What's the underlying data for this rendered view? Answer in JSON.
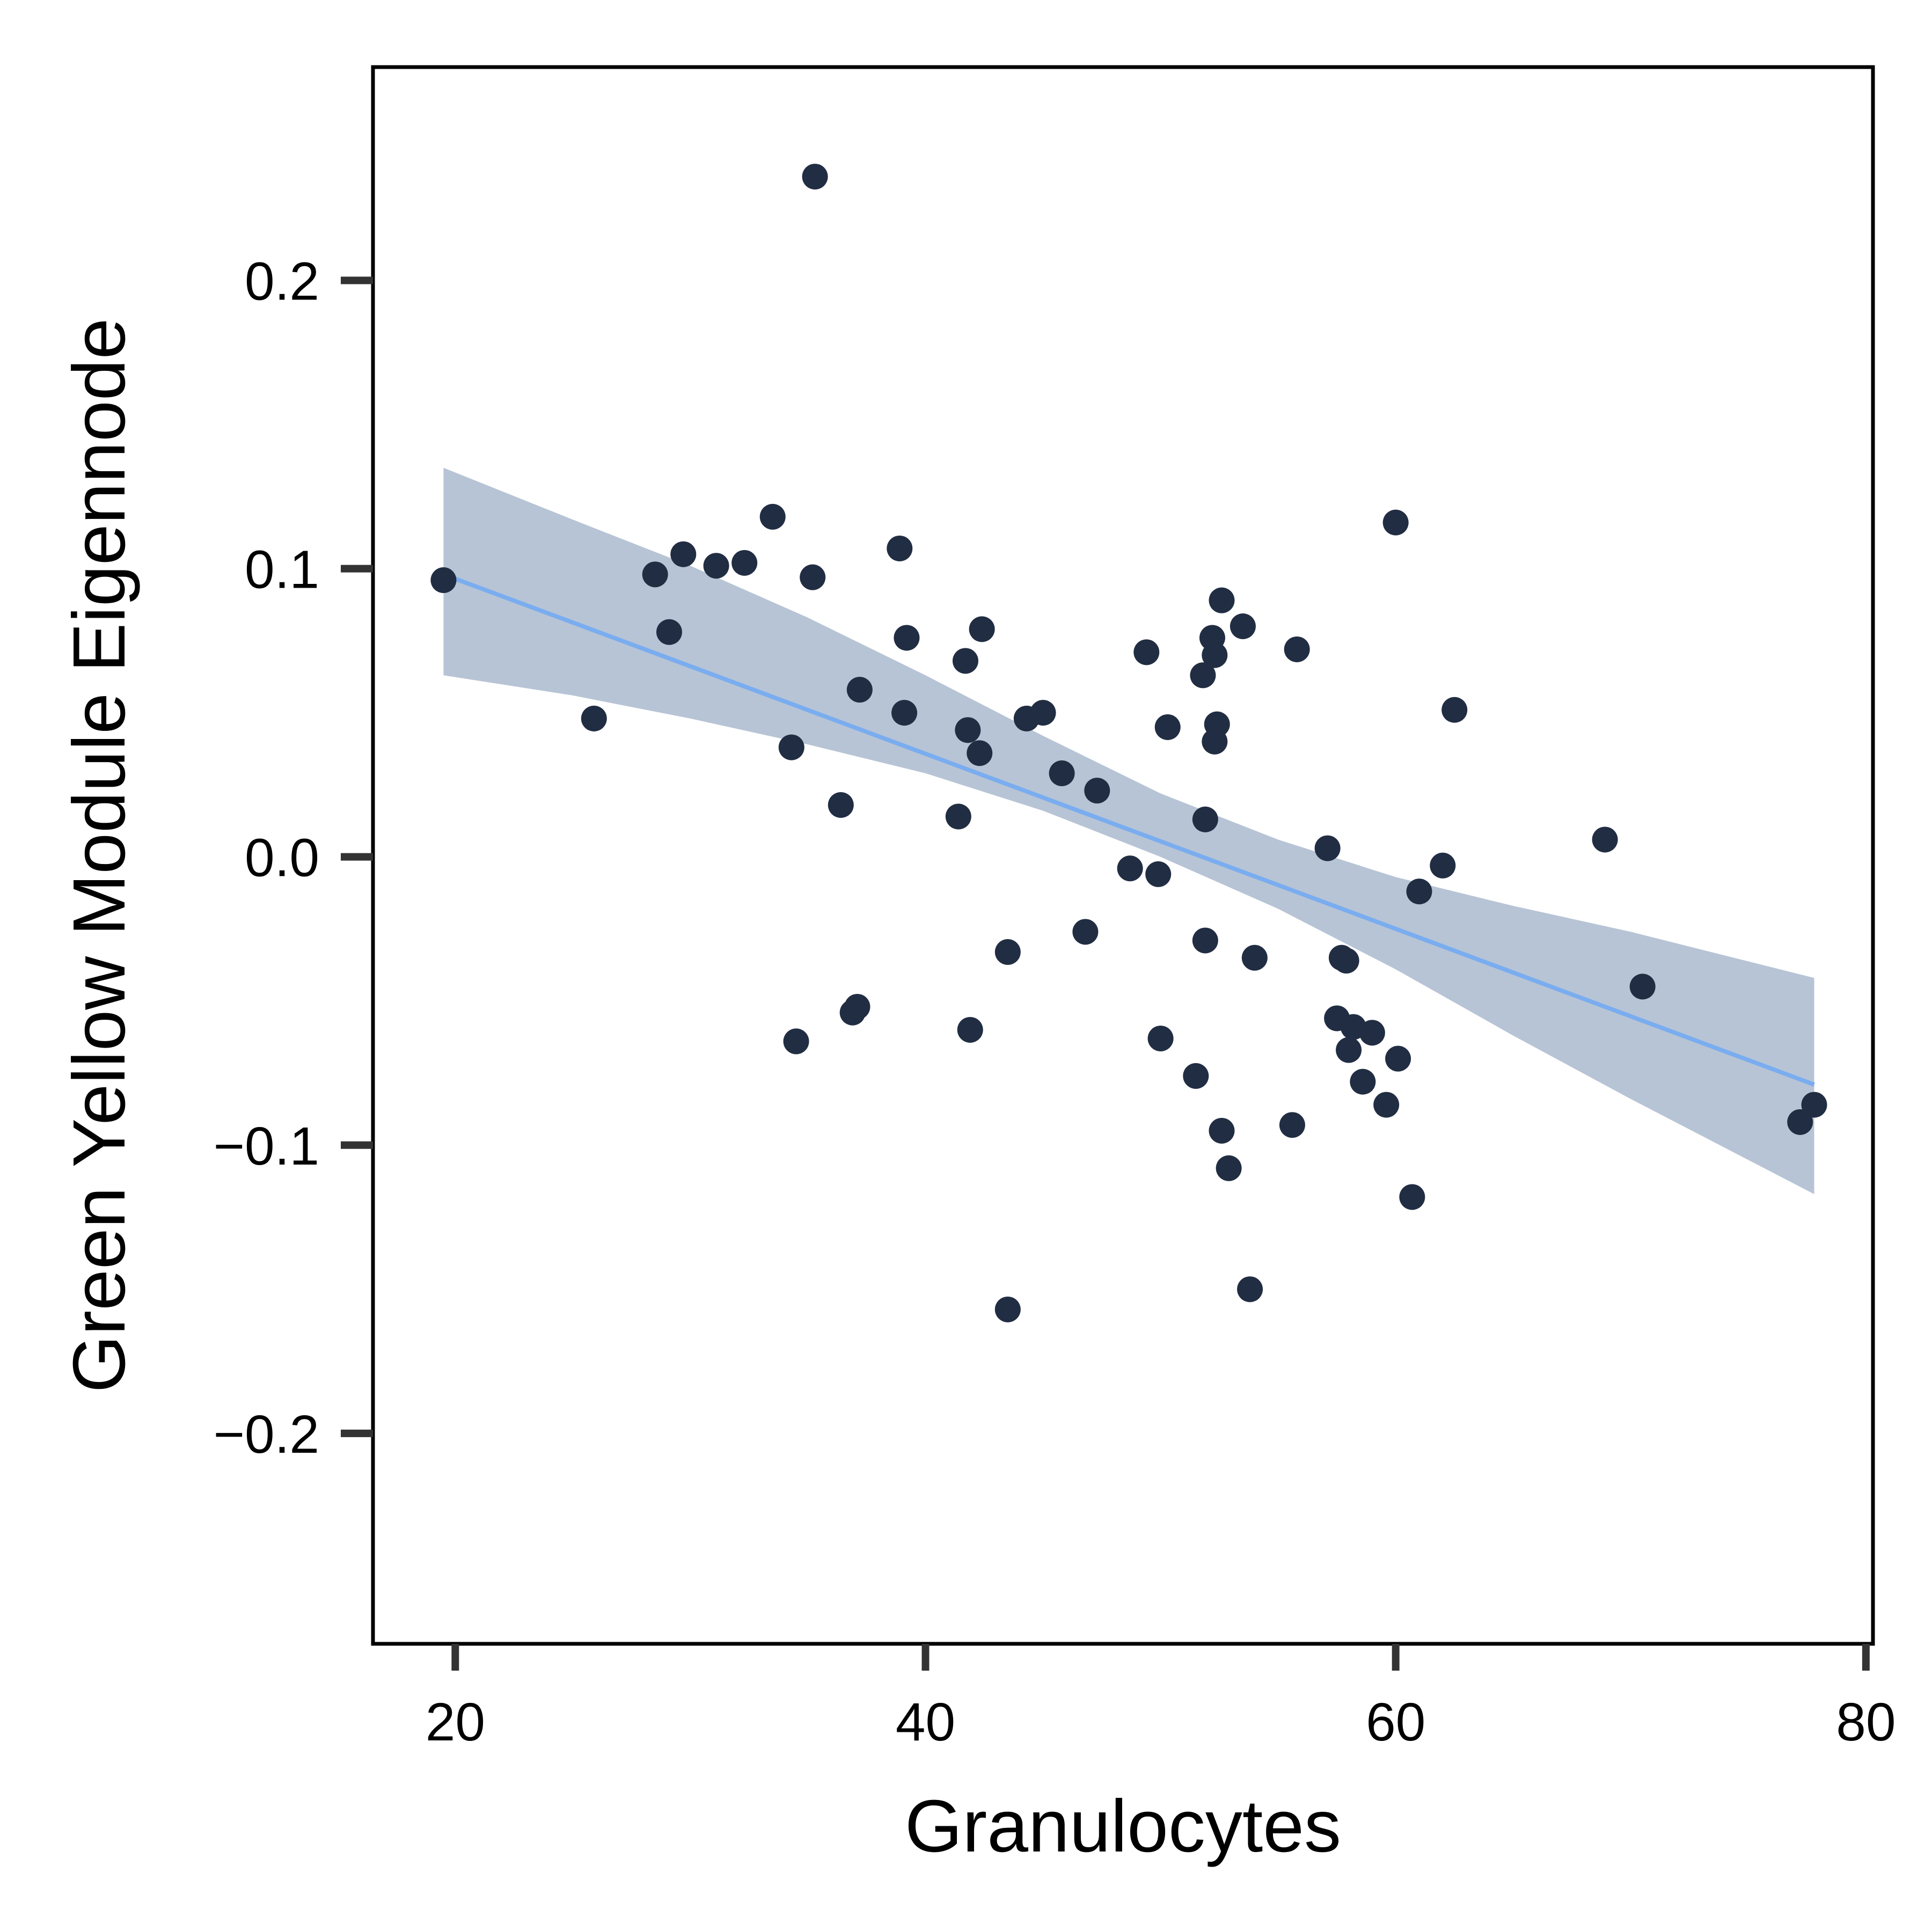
{
  "chart_data": {
    "type": "scatter",
    "title": "",
    "xlabel": "Granulocytes",
    "ylabel": "Green Yellow Module Eigennode",
    "xlim": [
      16.5,
      80.3
    ],
    "ylim": [
      -0.273,
      0.274
    ],
    "x_ticks": [
      20,
      40,
      60,
      80
    ],
    "y_ticks": [
      -0.2,
      -0.1,
      0.0,
      0.1,
      0.2
    ],
    "x_tick_labels": [
      "20",
      "40",
      "60",
      "80"
    ],
    "y_tick_labels": [
      "−0.2",
      "−0.1",
      "0.0",
      "0.1",
      "0.2"
    ],
    "grid": false,
    "colors": {
      "points": "#212d42",
      "fit_line": "#7aadf0",
      "confidence_band": "#b7c4d5",
      "frame": "#000000",
      "ticks": "#333333"
    },
    "points": [
      [
        19.5,
        0.096
      ],
      [
        25.9,
        0.048
      ],
      [
        28.5,
        0.098
      ],
      [
        29.1,
        0.078
      ],
      [
        29.7,
        0.105
      ],
      [
        31.1,
        0.101
      ],
      [
        32.3,
        0.102
      ],
      [
        33.5,
        0.118
      ],
      [
        34.3,
        0.038
      ],
      [
        34.5,
        -0.064
      ],
      [
        35.2,
        0.097
      ],
      [
        35.3,
        0.236
      ],
      [
        36.4,
        0.018
      ],
      [
        36.9,
        -0.054
      ],
      [
        37.1,
        -0.052
      ],
      [
        37.2,
        0.058
      ],
      [
        38.9,
        0.107
      ],
      [
        39.1,
        0.05
      ],
      [
        39.2,
        0.076
      ],
      [
        41.4,
        0.014
      ],
      [
        41.7,
        0.068
      ],
      [
        41.8,
        0.044
      ],
      [
        41.9,
        -0.06
      ],
      [
        42.3,
        0.036
      ],
      [
        42.4,
        0.079
      ],
      [
        43.5,
        -0.033
      ],
      [
        43.5,
        -0.157
      ],
      [
        44.3,
        0.048
      ],
      [
        45.0,
        0.05
      ],
      [
        45.8,
        0.029
      ],
      [
        46.8,
        -0.026
      ],
      [
        47.3,
        0.023
      ],
      [
        48.7,
        -0.004
      ],
      [
        49.4,
        0.071
      ],
      [
        49.9,
        -0.006
      ],
      [
        50.0,
        -0.063
      ],
      [
        50.3,
        0.045
      ],
      [
        51.5,
        -0.076
      ],
      [
        51.8,
        0.063
      ],
      [
        51.9,
        0.013
      ],
      [
        51.9,
        -0.029
      ],
      [
        52.2,
        0.076
      ],
      [
        52.3,
        0.07
      ],
      [
        52.3,
        0.04
      ],
      [
        52.4,
        0.046
      ],
      [
        52.6,
        0.089
      ],
      [
        52.6,
        -0.095
      ],
      [
        52.9,
        -0.108
      ],
      [
        53.5,
        0.08
      ],
      [
        53.8,
        -0.15
      ],
      [
        54.0,
        -0.035
      ],
      [
        55.6,
        -0.093
      ],
      [
        55.8,
        0.072
      ],
      [
        57.1,
        0.003
      ],
      [
        57.5,
        -0.056
      ],
      [
        57.7,
        -0.035
      ],
      [
        57.9,
        -0.036
      ],
      [
        58.0,
        -0.067
      ],
      [
        58.2,
        -0.059
      ],
      [
        58.6,
        -0.078
      ],
      [
        59.0,
        -0.061
      ],
      [
        59.6,
        -0.086
      ],
      [
        60.0,
        0.116
      ],
      [
        60.1,
        -0.07
      ],
      [
        60.7,
        -0.118
      ],
      [
        61.0,
        -0.012
      ],
      [
        62.0,
        -0.003
      ],
      [
        62.5,
        0.051
      ],
      [
        68.9,
        0.006
      ],
      [
        70.5,
        -0.045
      ],
      [
        77.2,
        -0.092
      ],
      [
        77.8,
        -0.086
      ]
    ],
    "fit_line": {
      "x": [
        19.5,
        77.8
      ],
      "y": [
        0.098,
        -0.079
      ]
    },
    "confidence_band": {
      "x": [
        19.5,
        25.0,
        30.0,
        35.0,
        40.0,
        45.0,
        50.0,
        55.0,
        60.0,
        65.0,
        70.0,
        77.8
      ],
      "upper": [
        0.135,
        0.117,
        0.101,
        0.083,
        0.063,
        0.042,
        0.022,
        0.006,
        -0.007,
        -0.017,
        -0.026,
        -0.042
      ],
      "lower": [
        0.063,
        0.056,
        0.048,
        0.039,
        0.029,
        0.016,
        0.0,
        -0.018,
        -0.039,
        -0.062,
        -0.084,
        -0.117
      ]
    }
  }
}
